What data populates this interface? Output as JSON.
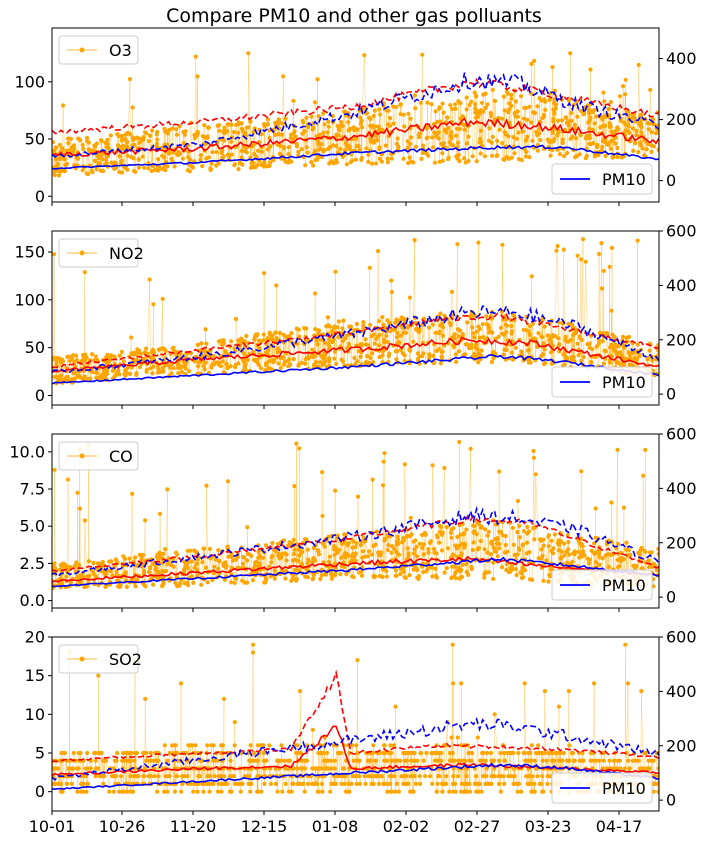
{
  "chart_data": {
    "type": "line",
    "title": "Compare PM10 and other gas polluants",
    "x_tick_labels": [
      "10-01",
      "10-26",
      "11-20",
      "12-15",
      "01-08",
      "02-02",
      "02-27",
      "03-23",
      "04-17"
    ],
    "x_range_days": [
      0,
      203
    ],
    "colors": {
      "pollutant": "#ffa500",
      "pm10": "#0000ff",
      "pm10_dashed": "#0000ff",
      "pollutant_dashed": "#ff0000",
      "pollutant_mean": "#ff0000"
    },
    "panels": [
      {
        "legend_left": "O3",
        "legend_right": "PM10",
        "ylim_left": [
          -5,
          147
        ],
        "yticks_left": [
          "0",
          "50",
          "100"
        ],
        "yticks_left_vals": [
          0,
          50,
          100
        ],
        "ylim_right": [
          -70,
          500
        ],
        "yticks_right": [
          "0",
          "200",
          "400"
        ],
        "yticks_right_vals": [
          0,
          200,
          400
        ],
        "pollutant_band": {
          "x": [
            0,
            50,
            100,
            150,
            203
          ],
          "low": [
            18,
            22,
            28,
            30,
            35
          ],
          "high": [
            50,
            62,
            75,
            95,
            70
          ],
          "spike_max": 130
        },
        "pm10_mean": {
          "x": [
            0,
            50,
            100,
            150,
            170,
            203
          ],
          "y": [
            40,
            60,
            90,
            110,
            110,
            70
          ]
        },
        "pm10_max": {
          "x": [
            0,
            50,
            100,
            140,
            155,
            175,
            203
          ],
          "y": [
            80,
            120,
            220,
            330,
            320,
            250,
            180
          ]
        },
        "pollutant_max": {
          "x": [
            0,
            50,
            100,
            140,
            160,
            203
          ],
          "y": [
            56,
            65,
            78,
            100,
            93,
            70
          ]
        },
        "pollutant_mean": {
          "x": [
            0,
            50,
            100,
            140,
            160,
            203
          ],
          "y": [
            36,
            42,
            52,
            65,
            62,
            48
          ]
        }
      },
      {
        "legend_left": "NO2",
        "legend_right": "PM10",
        "ylim_left": [
          -10,
          172
        ],
        "yticks_left": [
          "0",
          "50",
          "100",
          "150"
        ],
        "yticks_left_vals": [
          0,
          50,
          100,
          150
        ],
        "ylim_right": [
          -40,
          600
        ],
        "yticks_right": [
          "0",
          "200",
          "400",
          "600"
        ],
        "yticks_right_vals": [
          0,
          200,
          400,
          600
        ],
        "pollutant_band": {
          "x": [
            0,
            50,
            100,
            150,
            203
          ],
          "low": [
            12,
            22,
            30,
            35,
            20
          ],
          "high": [
            40,
            55,
            80,
            90,
            55
          ],
          "spike_max": 165
        },
        "pm10_mean": {
          "x": [
            0,
            50,
            100,
            150,
            170,
            203
          ],
          "y": [
            40,
            70,
            100,
            140,
            120,
            70
          ]
        },
        "pm10_max": {
          "x": [
            0,
            50,
            100,
            140,
            155,
            175,
            203
          ],
          "y": [
            80,
            140,
            220,
            300,
            300,
            250,
            130
          ]
        },
        "pollutant_max": {
          "x": [
            0,
            50,
            100,
            130,
            150,
            203
          ],
          "y": [
            30,
            48,
            65,
            80,
            83,
            50
          ]
        },
        "pollutant_mean": {
          "x": [
            0,
            50,
            100,
            140,
            160,
            203
          ],
          "y": [
            25,
            38,
            48,
            58,
            55,
            30
          ]
        }
      },
      {
        "legend_left": "CO",
        "legend_right": "PM10",
        "ylim_left": [
          -0.5,
          11.2
        ],
        "yticks_left": [
          "0.0",
          "2.5",
          "5.0",
          "7.5",
          "10.0"
        ],
        "yticks_left_vals": [
          0,
          2.5,
          5,
          7.5,
          10
        ],
        "ylim_right": [
          -40,
          600
        ],
        "yticks_right": [
          "0",
          "200",
          "400",
          "600"
        ],
        "yticks_right_vals": [
          0,
          200,
          400,
          600
        ],
        "pollutant_band": {
          "x": [
            0,
            50,
            100,
            150,
            203
          ],
          "low": [
            0.8,
            1.0,
            1.5,
            1.4,
            0.9
          ],
          "high": [
            2.5,
            3.5,
            4.5,
            5.5,
            3.5
          ],
          "spike_max": 10.7
        },
        "pm10_mean": {
          "x": [
            0,
            50,
            100,
            150,
            170,
            203
          ],
          "y": [
            40,
            70,
            100,
            140,
            120,
            80
          ]
        },
        "pm10_max": {
          "x": [
            0,
            50,
            100,
            140,
            155,
            175,
            203
          ],
          "y": [
            80,
            150,
            220,
            300,
            290,
            250,
            130
          ]
        },
        "pollutant_max": {
          "x": [
            0,
            50,
            100,
            140,
            160,
            203
          ],
          "y": [
            2.0,
            3.0,
            4.2,
            5.5,
            5.2,
            2.2
          ]
        },
        "pollutant_mean": {
          "x": [
            0,
            50,
            100,
            140,
            160,
            203
          ],
          "y": [
            1.3,
            1.9,
            2.5,
            2.8,
            2.4,
            1.7
          ]
        }
      },
      {
        "legend_left": "SO2",
        "legend_right": "PM10",
        "ylim_left": [
          -2.5,
          20
        ],
        "yticks_left": [
          "0",
          "5",
          "10",
          "15",
          "20"
        ],
        "yticks_left_vals": [
          0,
          5,
          10,
          15,
          20
        ],
        "ylim_right": [
          -40,
          600
        ],
        "yticks_right": [
          "0",
          "200",
          "400",
          "600"
        ],
        "yticks_right_vals": [
          0,
          200,
          400,
          600
        ],
        "pollutant_band": {
          "x": [
            0,
            50,
            100,
            150,
            203
          ],
          "low": [
            0,
            0,
            0,
            0,
            0
          ],
          "high": [
            5,
            6,
            6,
            6,
            5
          ],
          "spike_max": 20
        },
        "pm10_mean": {
          "x": [
            0,
            50,
            100,
            150,
            170,
            203
          ],
          "y": [
            40,
            70,
            100,
            130,
            120,
            80
          ]
        },
        "pm10_max": {
          "x": [
            0,
            50,
            100,
            140,
            155,
            175,
            203
          ],
          "y": [
            80,
            150,
            220,
            280,
            270,
            230,
            170
          ]
        },
        "pollutant_max": {
          "x": [
            0,
            50,
            80,
            95,
            100,
            130,
            170,
            203
          ],
          "y": [
            4,
            5,
            5.5,
            15,
            5,
            6,
            5.5,
            4.5
          ]
        },
        "pollutant_mean": {
          "x": [
            0,
            50,
            80,
            95,
            100,
            140,
            170,
            203
          ],
          "y": [
            2.2,
            3.0,
            3.3,
            8.5,
            3.0,
            3.5,
            3.0,
            2.5
          ]
        }
      }
    ]
  }
}
